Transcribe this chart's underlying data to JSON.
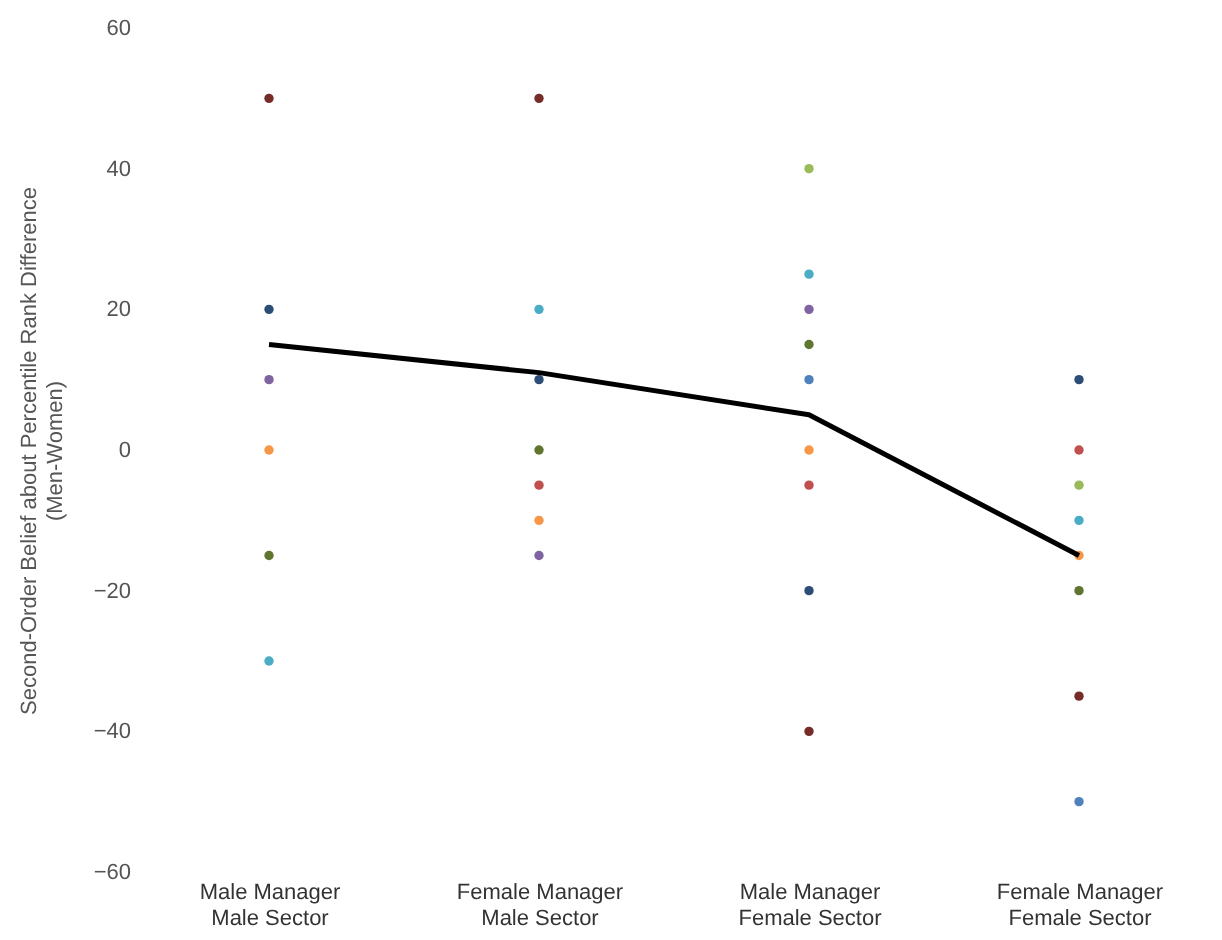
{
  "chart_data": {
    "type": "scatter",
    "ylabel": "Second-Order Belief about Percentile Rank Difference\n(Men-Women)",
    "categories": [
      "Male Manager\nMale Sector",
      "Female Manager\nMale Sector",
      "Male Manager\nFemale Sector",
      "Female Manager\nFemale Sector"
    ],
    "series": [
      {
        "color": "#2c4d75",
        "values": [
          20,
          10,
          -20,
          10
        ]
      },
      {
        "color": "#772c2a",
        "values": [
          50,
          50,
          -40,
          -35
        ]
      },
      {
        "color": "#8064a2",
        "values": [
          10,
          -15,
          20,
          null
        ]
      },
      {
        "color": "#f79646",
        "values": [
          0,
          -10,
          0,
          -15
        ]
      },
      {
        "color": "#5f7530",
        "values": [
          -15,
          0,
          15,
          -20
        ]
      },
      {
        "color": "#4bacc6",
        "values": [
          -30,
          20,
          25,
          -10
        ]
      },
      {
        "color": "#c0504d",
        "values": [
          null,
          -5,
          -5,
          0
        ]
      },
      {
        "color": "#9bbb59",
        "values": [
          null,
          null,
          40,
          -5
        ]
      },
      {
        "color": "#4f81bd",
        "values": [
          null,
          null,
          10,
          -50
        ]
      },
      {
        "type": "line",
        "marker": "none",
        "color": "#000000",
        "values": [
          15,
          11,
          5,
          -15
        ]
      }
    ],
    "ylim": [
      -60,
      60
    ],
    "yticks": [
      -60,
      -40,
      -20,
      0,
      20,
      40,
      60
    ],
    "grid": false,
    "legend": false,
    "marker": "circle"
  }
}
